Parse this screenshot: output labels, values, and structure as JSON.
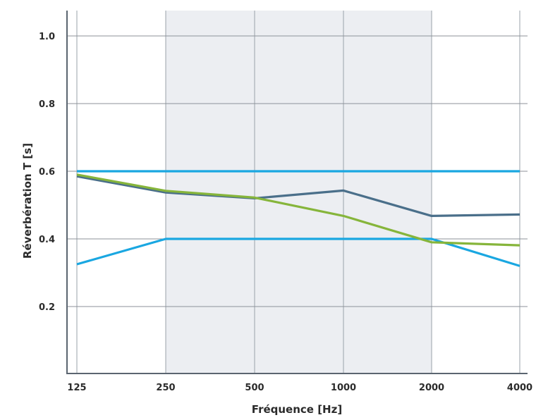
{
  "chart_data": {
    "type": "line",
    "x": [
      125,
      250,
      500,
      1000,
      2000,
      4000
    ],
    "xlabel": "Fréquence [Hz]",
    "ylabel": "Réverbération T [s]",
    "x_tick_labels": [
      "125",
      "250",
      "500",
      "1000",
      "2000",
      "4000"
    ],
    "y_tick_labels": [
      "0.2",
      "0.4",
      "0.6",
      "0.8",
      "1.0"
    ],
    "y_ticks": [
      0.2,
      0.4,
      0.6,
      0.8,
      1.0
    ],
    "ylim": [
      0.0,
      1.08
    ],
    "x_scale": "categorical (octave bands, equally spaced)",
    "grid": true,
    "shaded_band": {
      "from": 250,
      "to": 2000,
      "color": "#eceef2"
    },
    "series": [
      {
        "values": [
          0.6,
          0.6,
          0.6,
          0.6,
          0.6,
          0.6
        ],
        "color": "#1aa7e1"
      },
      {
        "values": [
          0.325,
          0.4,
          0.4,
          0.4,
          0.4,
          0.32
        ],
        "color": "#1aa7e1"
      },
      {
        "values": [
          0.585,
          0.537,
          0.52,
          0.543,
          0.468,
          0.472
        ],
        "color": "#4a6f8a"
      },
      {
        "values": [
          0.59,
          0.542,
          0.522,
          0.468,
          0.39,
          0.381
        ],
        "color": "#86b53b"
      }
    ]
  }
}
